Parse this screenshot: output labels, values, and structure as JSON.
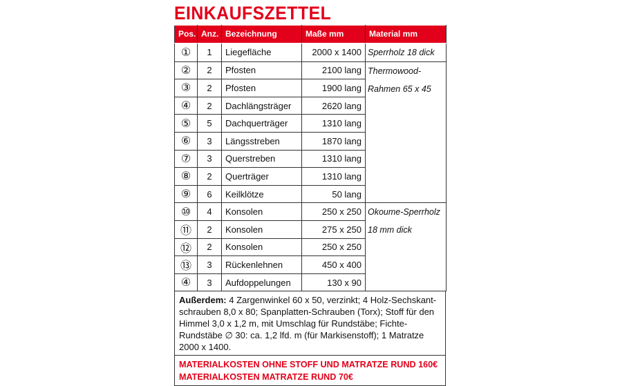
{
  "title": "EINKAUFSZETTEL",
  "colors": {
    "accent": "#e2001a",
    "border": "#333333"
  },
  "headers": [
    "Pos.",
    "Anz.",
    "Bezeichnung",
    "Maße mm",
    "Material mm"
  ],
  "rows": [
    {
      "pos": "①",
      "anz": "1",
      "bez": "Liegefläche",
      "mass": "2000 x 1400"
    },
    {
      "pos": "②",
      "anz": "2",
      "bez": "Pfosten",
      "mass": "2100 lang"
    },
    {
      "pos": "③",
      "anz": "2",
      "bez": "Pfosten",
      "mass": "1900 lang"
    },
    {
      "pos": "④",
      "anz": "2",
      "bez": "Dachlängsträger",
      "mass": "2620 lang"
    },
    {
      "pos": "⑤",
      "anz": "5",
      "bez": "Dachquerträger",
      "mass": "1310 lang"
    },
    {
      "pos": "⑥",
      "anz": "3",
      "bez": "Längsstreben",
      "mass": "1870 lang"
    },
    {
      "pos": "⑦",
      "anz": "3",
      "bez": "Querstreben",
      "mass": "1310 lang"
    },
    {
      "pos": "⑧",
      "anz": "2",
      "bez": "Querträger",
      "mass": "1310 lang"
    },
    {
      "pos": "⑨",
      "anz": "6",
      "bez": "Keilklötze",
      "mass": "50 lang"
    },
    {
      "pos": "⑩",
      "anz": "4",
      "bez": "Konsolen",
      "mass": "250 x 250"
    },
    {
      "pos": "⑪",
      "anz": "2",
      "bez": "Konsolen",
      "mass": "275 x 250"
    },
    {
      "pos": "⑫",
      "anz": "2",
      "bez": "Konsolen",
      "mass": "250 x 250"
    },
    {
      "pos": "⑬",
      "anz": "3",
      "bez": "Rückenlehnen",
      "mass": "450 x 400"
    },
    {
      "pos": "④",
      "anz": "3",
      "bez": "Aufdoppelungen",
      "mass": "130 x 90"
    }
  ],
  "materials": {
    "m1": "Sperrholz 18 dick",
    "m2a": "Thermowood-",
    "m2b": "Rahmen 65 x 45",
    "m3a": "Okoume-Sperrholz",
    "m3b": "18 mm dick"
  },
  "notes": {
    "label": "Außerdem:",
    "text": " 4 Zargenwinkel 60 x 50, verzinkt; 4 Holz-Sechskant­schrauben 8,0 x 80; Spanplatten-Schrauben (Torx); Stoff für den Himmel 3,0 x 1,2 m, mit Umschlag für Rundstäbe; Fichte-Rundstäbe ∅ 30: ca. 1,2 lfd. m (für Markisenstoff); 1 Matratze 2000 x 1400."
  },
  "costs": [
    "MATERIALKOSTEN OHNE STOFF UND MATRATZE RUND 160€",
    "MATERIALKOSTEN MATRATZE RUND 70€"
  ]
}
